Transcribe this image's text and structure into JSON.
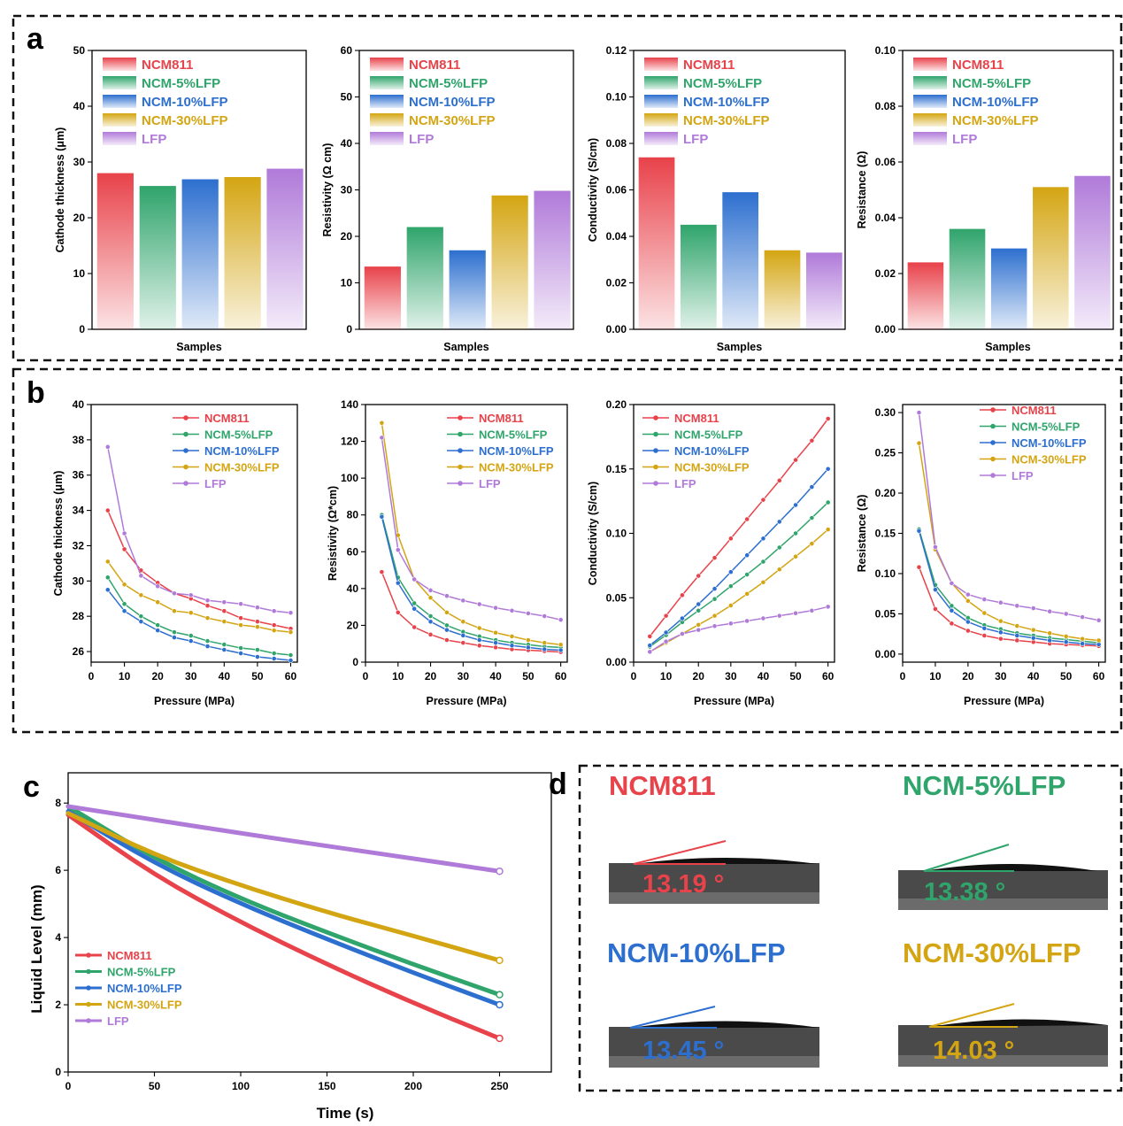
{
  "colors": {
    "NCM811": "#e8424a",
    "NCM-5%LFP": "#2fa46b",
    "NCM-10%LFP": "#2d6fcf",
    "NCM-30%LFP": "#d4a512",
    "LFP": "#b07ad9"
  },
  "series_names": [
    "NCM811",
    "NCM-5%LFP",
    "NCM-10%LFP",
    "NCM-30%LFP",
    "LFP"
  ],
  "panel_labels": {
    "a": "a",
    "b": "b",
    "c": "c",
    "d": "d"
  },
  "chart_data": [
    {
      "id": "a1",
      "type": "bar",
      "categories": [
        "NCM811",
        "NCM-5%LFP",
        "NCM-10%LFP",
        "NCM-30%LFP",
        "LFP"
      ],
      "values": [
        28.0,
        25.7,
        26.9,
        27.3,
        28.8
      ],
      "xlabel": "Samples",
      "ylabel": "Cathode thickness (μm)",
      "ylim": [
        0,
        50
      ],
      "yticks": [
        "0",
        "10",
        "20",
        "30",
        "40",
        "50"
      ]
    },
    {
      "id": "a2",
      "type": "bar",
      "categories": [
        "NCM811",
        "NCM-5%LFP",
        "NCM-10%LFP",
        "NCM-30%LFP",
        "LFP"
      ],
      "values": [
        13.5,
        22.0,
        17.0,
        28.8,
        29.8
      ],
      "xlabel": "Samples",
      "ylabel": "Resistivity (Ω cm)",
      "ylim": [
        0,
        60
      ],
      "yticks": [
        "0",
        "10",
        "20",
        "30",
        "40",
        "50",
        "60"
      ]
    },
    {
      "id": "a3",
      "type": "bar",
      "categories": [
        "NCM811",
        "NCM-5%LFP",
        "NCM-10%LFP",
        "NCM-30%LFP",
        "LFP"
      ],
      "values": [
        0.074,
        0.045,
        0.059,
        0.034,
        0.033
      ],
      "xlabel": "Samples",
      "ylabel": "Conductivity (S/cm)",
      "ylim": [
        0,
        0.12
      ],
      "yticks": [
        "0.00",
        "0.02",
        "0.04",
        "0.06",
        "0.08",
        "0.10",
        "0.12"
      ]
    },
    {
      "id": "a4",
      "type": "bar",
      "categories": [
        "NCM811",
        "NCM-5%LFP",
        "NCM-10%LFP",
        "NCM-30%LFP",
        "LFP"
      ],
      "values": [
        0.024,
        0.036,
        0.029,
        0.051,
        0.055
      ],
      "xlabel": "Samples",
      "ylabel": "Resistance (Ω)",
      "ylim": [
        0,
        0.1
      ],
      "yticks": [
        "0.00",
        "0.02",
        "0.04",
        "0.06",
        "0.08",
        "0.10"
      ]
    },
    {
      "id": "b1",
      "type": "line",
      "x": [
        5,
        10,
        15,
        20,
        25,
        30,
        35,
        40,
        45,
        50,
        55,
        60
      ],
      "series": [
        {
          "name": "NCM811",
          "values": [
            34.0,
            31.8,
            30.6,
            29.9,
            29.3,
            29.0,
            28.6,
            28.3,
            27.9,
            27.7,
            27.5,
            27.3
          ]
        },
        {
          "name": "NCM-5%LFP",
          "values": [
            30.2,
            28.7,
            28.0,
            27.5,
            27.1,
            26.9,
            26.6,
            26.4,
            26.2,
            26.1,
            25.9,
            25.8
          ]
        },
        {
          "name": "NCM-10%LFP",
          "values": [
            29.5,
            28.3,
            27.7,
            27.2,
            26.8,
            26.6,
            26.3,
            26.1,
            25.9,
            25.7,
            25.6,
            25.5
          ]
        },
        {
          "name": "NCM-30%LFP",
          "values": [
            31.1,
            29.8,
            29.2,
            28.8,
            28.3,
            28.2,
            27.9,
            27.7,
            27.5,
            27.4,
            27.2,
            27.1
          ]
        },
        {
          "name": "LFP",
          "values": [
            37.6,
            32.7,
            30.3,
            29.7,
            29.3,
            29.2,
            28.9,
            28.8,
            28.7,
            28.5,
            28.3,
            28.2
          ]
        }
      ],
      "xlabel": "Pressure (MPa)",
      "ylabel": "Cathode thickness (μm)",
      "xlim": [
        0,
        62
      ],
      "ylim": [
        25.4,
        40
      ],
      "xticks": [
        0,
        10,
        20,
        30,
        40,
        50,
        60
      ],
      "yticks": [
        26,
        28,
        30,
        32,
        34,
        36,
        38,
        40
      ]
    },
    {
      "id": "b2",
      "type": "line",
      "x": [
        5,
        10,
        15,
        20,
        25,
        30,
        35,
        40,
        45,
        50,
        55,
        60
      ],
      "series": [
        {
          "name": "NCM811",
          "values": [
            49,
            27,
            19,
            15,
            12,
            10.5,
            9,
            8,
            7,
            6.5,
            6,
            5.5
          ]
        },
        {
          "name": "NCM-5%LFP",
          "values": [
            80,
            46,
            32,
            25,
            20,
            16.5,
            14,
            12,
            10.5,
            9.5,
            8.5,
            8
          ]
        },
        {
          "name": "NCM-10%LFP",
          "values": [
            79,
            43,
            29,
            22,
            17.5,
            14.5,
            12,
            10.5,
            9,
            8,
            7,
            6.5
          ]
        },
        {
          "name": "NCM-30%LFP",
          "values": [
            130,
            69,
            45,
            35,
            27,
            22,
            18.5,
            16,
            14,
            12,
            10.5,
            9.5
          ]
        },
        {
          "name": "LFP",
          "values": [
            122,
            61,
            45,
            39,
            36,
            33.5,
            31.5,
            29.5,
            28,
            26.5,
            25,
            23
          ]
        }
      ],
      "xlabel": "Pressure (MPa)",
      "ylabel": "Resistivity (Ω*cm)",
      "xlim": [
        0,
        62
      ],
      "ylim": [
        0,
        140
      ],
      "xticks": [
        0,
        10,
        20,
        30,
        40,
        50,
        60
      ],
      "yticks": [
        0,
        20,
        40,
        60,
        80,
        100,
        120,
        140
      ]
    },
    {
      "id": "b3",
      "type": "line",
      "x": [
        5,
        10,
        15,
        20,
        25,
        30,
        35,
        40,
        45,
        50,
        55,
        60
      ],
      "series": [
        {
          "name": "NCM811",
          "values": [
            0.02,
            0.036,
            0.052,
            0.067,
            0.081,
            0.096,
            0.111,
            0.126,
            0.141,
            0.157,
            0.172,
            0.189
          ]
        },
        {
          "name": "NCM-5%LFP",
          "values": [
            0.012,
            0.021,
            0.031,
            0.04,
            0.049,
            0.059,
            0.068,
            0.078,
            0.089,
            0.1,
            0.112,
            0.124
          ]
        },
        {
          "name": "NCM-10%LFP",
          "values": [
            0.013,
            0.023,
            0.034,
            0.045,
            0.057,
            0.07,
            0.083,
            0.096,
            0.109,
            0.122,
            0.136,
            0.15
          ]
        },
        {
          "name": "NCM-30%LFP",
          "values": [
            0.008,
            0.015,
            0.022,
            0.029,
            0.036,
            0.044,
            0.053,
            0.062,
            0.072,
            0.082,
            0.092,
            0.103
          ]
        },
        {
          "name": "LFP",
          "values": [
            0.008,
            0.016,
            0.022,
            0.025,
            0.028,
            0.03,
            0.032,
            0.034,
            0.036,
            0.038,
            0.04,
            0.043
          ]
        }
      ],
      "xlabel": "Pressure (MPa)",
      "ylabel": "Conductivity (S/cm)",
      "xlim": [
        0,
        62
      ],
      "ylim": [
        0,
        0.2
      ],
      "xticks": [
        0,
        10,
        20,
        30,
        40,
        50,
        60
      ],
      "yticks": [
        "0.00",
        "0.05",
        "0.10",
        "0.15",
        "0.20"
      ]
    },
    {
      "id": "b4",
      "type": "line",
      "x": [
        5,
        10,
        15,
        20,
        25,
        30,
        35,
        40,
        45,
        50,
        55,
        60
      ],
      "series": [
        {
          "name": "NCM811",
          "values": [
            0.108,
            0.056,
            0.038,
            0.029,
            0.023,
            0.019,
            0.017,
            0.015,
            0.013,
            0.012,
            0.011,
            0.01
          ]
        },
        {
          "name": "NCM-5%LFP",
          "values": [
            0.155,
            0.086,
            0.06,
            0.045,
            0.036,
            0.031,
            0.026,
            0.023,
            0.02,
            0.018,
            0.016,
            0.014
          ]
        },
        {
          "name": "NCM-10%LFP",
          "values": [
            0.153,
            0.08,
            0.054,
            0.04,
            0.032,
            0.027,
            0.023,
            0.02,
            0.017,
            0.015,
            0.013,
            0.012
          ]
        },
        {
          "name": "NCM-30%LFP",
          "values": [
            0.262,
            0.13,
            0.088,
            0.066,
            0.051,
            0.041,
            0.035,
            0.03,
            0.026,
            0.022,
            0.019,
            0.017
          ]
        },
        {
          "name": "LFP",
          "values": [
            0.3,
            0.133,
            0.088,
            0.074,
            0.068,
            0.064,
            0.06,
            0.057,
            0.053,
            0.05,
            0.046,
            0.042
          ]
        }
      ],
      "xlabel": "Pressure (MPa)",
      "ylabel": "Resistance (Ω)",
      "xlim": [
        0,
        62
      ],
      "ylim": [
        -0.01,
        0.31
      ],
      "xticks": [
        0,
        10,
        20,
        30,
        40,
        50,
        60
      ],
      "yticks": [
        "0.00",
        "0.05",
        "0.10",
        "0.15",
        "0.20",
        "0.25",
        "0.30"
      ]
    },
    {
      "id": "c",
      "type": "line",
      "x": [
        0,
        50,
        100,
        150,
        200,
        250
      ],
      "series": [
        {
          "name": "NCM811",
          "values": [
            7.65,
            5.85,
            4.45,
            3.2,
            2.05,
            1.0
          ]
        },
        {
          "name": "NCM-5%LFP",
          "values": [
            7.9,
            6.35,
            5.15,
            4.15,
            3.2,
            2.3
          ]
        },
        {
          "name": "NCM-10%LFP",
          "values": [
            7.75,
            6.2,
            5.0,
            3.95,
            2.95,
            2.0
          ]
        },
        {
          "name": "NCM-30%LFP",
          "values": [
            7.7,
            6.45,
            5.55,
            4.75,
            4.05,
            3.32
          ]
        },
        {
          "name": "LFP",
          "values": [
            7.9,
            7.5,
            7.1,
            6.72,
            6.35,
            5.97
          ]
        }
      ],
      "xlabel": "Time (s)",
      "ylabel": "Liquid Level (mm)",
      "xlim": [
        0,
        280
      ],
      "ylim": [
        0,
        8.9
      ],
      "xticks": [
        0,
        50,
        100,
        150,
        200,
        250
      ],
      "yticks": [
        0,
        2,
        4,
        6,
        8
      ]
    }
  ],
  "contact_angles": [
    {
      "name": "NCM811",
      "angle": "13.19 °"
    },
    {
      "name": "NCM-5%LFP",
      "angle": "13.38 °"
    },
    {
      "name": "NCM-10%LFP",
      "angle": "13.45 °"
    },
    {
      "name": "NCM-30%LFP",
      "angle": "14.03 °"
    }
  ]
}
